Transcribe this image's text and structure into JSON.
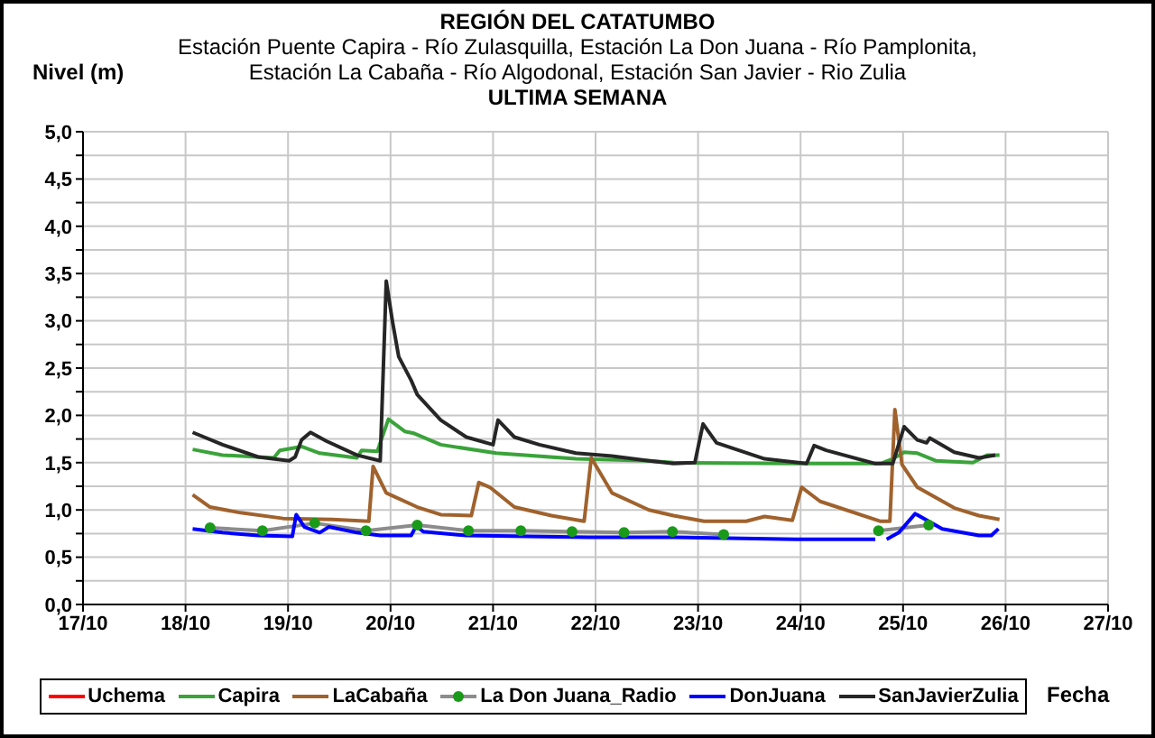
{
  "chart_data": {
    "type": "line",
    "title": "REGIÓN DEL CATATUMBO",
    "subtitle": "Estación Puente Capira - Río Zulasquilla, Estación La Don Juana - Río Pamplonita,\nEstación La Cabaña - Río Algodonal, Estación San Javier - Rio Zulia",
    "annotations": [
      "ULTIMA SEMANA"
    ],
    "ylabel": "Nivel (m)",
    "xlabel": "Fecha",
    "xlim": [
      "--10-17",
      "--10-27"
    ],
    "xticks": [
      {
        "value": "--10-17",
        "label": "17/10"
      },
      {
        "value": "--10-18",
        "label": "18/10"
      },
      {
        "value": "--10-19",
        "label": "19/10"
      },
      {
        "value": "--10-20",
        "label": "20/10"
      },
      {
        "value": "--10-21",
        "label": "21/10"
      },
      {
        "value": "--10-22",
        "label": "22/10"
      },
      {
        "value": "--10-23",
        "label": "23/10"
      },
      {
        "value": "--10-24",
        "label": "24/10"
      },
      {
        "value": "--10-25",
        "label": "25/10"
      },
      {
        "value": "--10-26",
        "label": "26/10"
      },
      {
        "value": "--10-27",
        "label": "27/10"
      }
    ],
    "ylim": [
      0,
      5
    ],
    "yticks": [
      {
        "value": 0,
        "label": "0,0"
      },
      {
        "value": 0.25,
        "label": null
      },
      {
        "value": 0.5,
        "label": "0,5"
      },
      {
        "value": 0.75,
        "label": null
      },
      {
        "value": 1,
        "label": "1,0"
      },
      {
        "value": 1.25,
        "label": null
      },
      {
        "value": 1.5,
        "label": "1,5"
      },
      {
        "value": 1.75,
        "label": null
      },
      {
        "value": 2,
        "label": "2,0"
      },
      {
        "value": 2.25,
        "label": null
      },
      {
        "value": 2.5,
        "label": "2,5"
      },
      {
        "value": 2.75,
        "label": null
      },
      {
        "value": 3,
        "label": "3,0"
      },
      {
        "value": 3.25,
        "label": null
      },
      {
        "value": 3.5,
        "label": "3,5"
      },
      {
        "value": 3.75,
        "label": null
      },
      {
        "value": 4,
        "label": "4,0"
      },
      {
        "value": 4.25,
        "label": null
      },
      {
        "value": 4.5,
        "label": "4,5"
      },
      {
        "value": 4.75,
        "label": null
      },
      {
        "value": 5,
        "label": "5,0"
      }
    ],
    "grid": true,
    "legend": "bottom",
    "marker": "none",
    "line_style": "solid",
    "series": [
      {
        "name": "Uchema",
        "color": "#ff0000"
      },
      {
        "name": "Capira",
        "color": "#3aa33a",
        "x": [
          "--10-18T01:40",
          "--10-18T08:40",
          "--10-18T20:40",
          "--10-18T22:05",
          "--10-19T03:10",
          "--10-19T07:25",
          "--10-19T16:05",
          "--10-19T17:15",
          "--10-19T20:55",
          "--10-19T23:30",
          "--10-20T03:20",
          "--10-20T05:30",
          "--10-20T11:45",
          "--10-21T00:45",
          "--10-21T19:25",
          "--10-22T12:30",
          "--10-22T18:15",
          "--10-23T22:50",
          "--10-24T18:45",
          "--10-24T21:35",
          "--10-25T00:15",
          "--10-25T03:20",
          "--10-25T07:40",
          "--10-25T16:20",
          "--10-25T19:40",
          "--10-25T22:35"
        ],
        "values": [
          1.64,
          1.58,
          1.55,
          1.63,
          1.67,
          1.6,
          1.55,
          1.63,
          1.62,
          1.96,
          1.83,
          1.81,
          1.69,
          1.6,
          1.54,
          1.52,
          1.5,
          1.49,
          1.49,
          1.54,
          1.61,
          1.6,
          1.52,
          1.5,
          1.58,
          1.58
        ]
      },
      {
        "name": "LaCabaña",
        "color": "#a0622d",
        "x": [
          "--10-18T01:40",
          "--10-18T05:45",
          "--10-18T12:55",
          "--10-18T22:50",
          "--10-19T10:20",
          "--10-19T18:55",
          "--10-19T19:55",
          "--10-19T23:00",
          "--10-20T06:15",
          "--10-20T11:45",
          "--10-20T18:55",
          "--10-20T20:40",
          "--10-20T23:15",
          "--10-21T05:00",
          "--10-21T13:40",
          "--10-21T21:20",
          "--10-21T23:00",
          "--10-22T03:50",
          "--10-22T12:30",
          "--10-22T18:15",
          "--10-23T01:25",
          "--10-23T11:15",
          "--10-23T15:35",
          "--10-23T22:05",
          "--10-24T00:15",
          "--10-24T04:35",
          "--10-24T18:45",
          "--10-24T20:55",
          "--10-24T22:05",
          "--10-24T23:45",
          "--10-25T03:20",
          "--10-25T12:00",
          "--10-25T17:45",
          "--10-25T22:35"
        ],
        "values": [
          1.16,
          1.03,
          0.97,
          0.91,
          0.9,
          0.88,
          1.46,
          1.18,
          1.03,
          0.95,
          0.94,
          1.29,
          1.24,
          1.03,
          0.94,
          0.88,
          1.55,
          1.18,
          1.0,
          0.94,
          0.88,
          0.88,
          0.93,
          0.89,
          1.24,
          1.09,
          0.88,
          0.88,
          2.06,
          1.48,
          1.24,
          1.02,
          0.94,
          0.9
        ]
      },
      {
        "name": "La Don Juana_Radio",
        "color": "#8c8c8c",
        "marker": "circle",
        "colors": [
          "#1a9a1a",
          "#1a9a1a",
          "#1a9a1a",
          "#1a9a1a",
          "#1a9a1a",
          "#1a9a1a",
          "#1a9a1a",
          "#1a9a1a",
          "#1a9a1a",
          "#1a9a1a",
          "#1a9a1a",
          null,
          "#1a9a1a",
          "#1a9a1a"
        ],
        "x": [
          "--10-18T05:45",
          "--10-18T18:00",
          "--10-19T06:15",
          "--10-19T18:15",
          "--10-20T06:15",
          "--10-20T18:15",
          "--10-21T06:30",
          "--10-21T18:30",
          "--10-22T06:40",
          "--10-22T18:00",
          "--10-23T06:00",
          "--10-24T00:00",
          "--10-24T18:15",
          "--10-25T06:00"
        ],
        "values": [
          0.81,
          0.78,
          0.86,
          0.78,
          0.84,
          0.78,
          0.78,
          0.77,
          0.76,
          0.77,
          0.74,
          null,
          0.78,
          0.84
        ]
      },
      {
        "name": "DonJuana",
        "color": "#0000ff",
        "x": [
          "--10-18T01:40",
          "--10-18T08:40",
          "--10-18T17:00",
          "--10-19T01:00",
          "--10-19T01:55",
          "--10-19T03:50",
          "--10-19T07:25",
          "--10-19T09:35",
          "--10-19T16:05",
          "--10-19T21:35",
          "--10-20T04:50",
          "--10-20T06:00",
          "--10-20T07:40",
          "--10-20T17:45",
          "--10-21T07:55",
          "--10-21T22:20",
          "--10-22T12:30",
          "--10-22T18:15",
          "--10-23T22:50",
          "--10-24T17:30",
          "--10-24T18:45",
          "--10-24T20:10",
          "--10-24T23:00",
          "--10-25T02:50",
          "--10-25T09:10",
          "--10-25T17:45",
          "--10-25T20:40",
          "--10-25T22:20"
        ],
        "values": [
          0.8,
          0.76,
          0.73,
          0.72,
          0.95,
          0.82,
          0.76,
          0.82,
          0.76,
          0.73,
          0.73,
          0.83,
          0.77,
          0.73,
          0.72,
          0.71,
          0.71,
          0.71,
          0.69,
          0.69,
          null,
          0.69,
          0.76,
          0.96,
          0.8,
          0.73,
          0.73,
          0.8
        ]
      },
      {
        "name": "SanJavierZulia",
        "color": "#262626",
        "x": [
          "--10-18T01:40",
          "--10-18T08:40",
          "--10-18T17:00",
          "--10-19T00:15",
          "--10-19T01:40",
          "--10-19T03:10",
          "--10-19T05:15",
          "--10-19T08:55",
          "--10-19T16:05",
          "--10-19T21:35",
          "--10-19T23:00",
          "--10-20T00:30",
          "--10-20T01:55",
          "--10-20T04:50",
          "--10-20T06:15",
          "--10-20T11:45",
          "--10-20T17:45",
          "--10-21T00:00",
          "--10-21T01:10",
          "--10-21T05:00",
          "--10-21T10:50",
          "--10-21T19:25",
          "--10-22T03:50",
          "--10-22T12:30",
          "--10-22T18:15",
          "--10-22T23:15",
          "--10-23T01:10",
          "--10-23T04:20",
          "--10-23T15:35",
          "--10-24T01:25",
          "--10-24T03:10",
          "--10-24T06:00",
          "--10-24T17:30",
          "--10-24T21:35",
          "--10-25T00:15",
          "--10-25T03:20",
          "--10-25T05:30",
          "--10-25T06:15",
          "--10-25T12:00",
          "--10-25T17:45",
          "--10-25T21:35"
        ],
        "values": [
          1.82,
          1.69,
          1.56,
          1.52,
          1.56,
          1.74,
          1.82,
          1.73,
          1.58,
          1.52,
          3.42,
          2.98,
          2.62,
          2.37,
          2.22,
          1.95,
          1.77,
          1.69,
          1.95,
          1.77,
          1.69,
          1.6,
          1.57,
          1.52,
          1.49,
          1.5,
          1.91,
          1.71,
          1.54,
          1.49,
          1.68,
          1.63,
          1.49,
          1.49,
          1.88,
          1.74,
          1.71,
          1.76,
          1.61,
          1.55,
          1.58
        ]
      }
    ]
  }
}
